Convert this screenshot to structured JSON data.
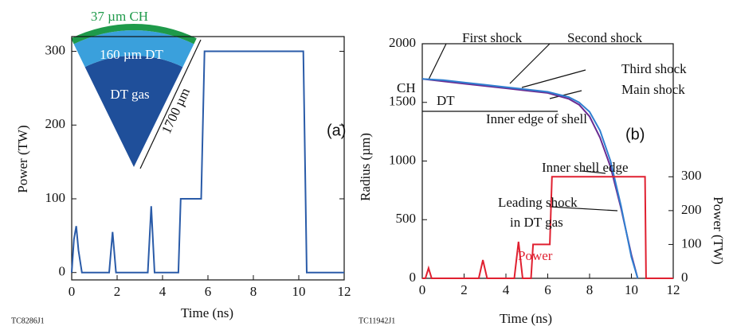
{
  "chart_data": [
    {
      "type": "line",
      "xlabel": "Time (ns)",
      "ylabel": "Power (TW)",
      "x": [
        0,
        0.1,
        0.2,
        0.3,
        0.45,
        1.65,
        1.8,
        1.95,
        3.35,
        3.5,
        3.65,
        4.7,
        4.8,
        5.7,
        5.85,
        10.2,
        10.35,
        12
      ],
      "series": [
        {
          "color": "#2a5ba8",
          "values": [
            0,
            45,
            63,
            30,
            0,
            0,
            55,
            0,
            0,
            90,
            0,
            0,
            100,
            100,
            300,
            300,
            0,
            0
          ]
        }
      ],
      "xlim": [
        0,
        12
      ],
      "xticks": [
        0,
        2,
        4,
        6,
        8,
        10,
        12
      ],
      "ylim": [
        -10,
        320
      ],
      "yticks": [
        0,
        100,
        200,
        300
      ],
      "annotations": [
        "37 µm CH",
        "160 µm DT",
        "DT gas",
        "1700 µm",
        "(a)"
      ],
      "footnote": "TC8286J1"
    },
    {
      "type": "line",
      "xlabel": "Time (ns)",
      "ylabel": "Radius (µm)",
      "y2label": "Power (TW)",
      "x": [
        0,
        1,
        2,
        3,
        4,
        5,
        6,
        7,
        7.5,
        8,
        8.5,
        9,
        9.5,
        10,
        10.3
      ],
      "series": [
        {
          "color": "#6a2c91",
          "values": [
            1700,
            1680,
            1660,
            1640,
            1620,
            1600,
            1580,
            1530,
            1480,
            1380,
            1200,
            950,
            600,
            200,
            0
          ]
        },
        {
          "color": "#2f7fd0",
          "values": [
            1700,
            1690,
            1670,
            1650,
            1630,
            1610,
            1590,
            1545,
            1500,
            1420,
            1260,
            1000,
            620,
            180,
            0
          ]
        },
        {
          "name": "Power",
          "color": "#e02030",
          "axis": "y2",
          "x": [
            0,
            0.15,
            0.3,
            0.45,
            0.6,
            2.7,
            2.9,
            3.1,
            4.4,
            4.6,
            4.8,
            5.2,
            5.3,
            6.1,
            6.2,
            10.65,
            10.7,
            12
          ],
          "values": [
            0,
            0,
            30,
            0,
            0,
            0,
            54,
            0,
            0,
            108,
            0,
            0,
            100,
            100,
            300,
            300,
            0,
            0
          ]
        }
      ],
      "xlim": [
        0,
        12
      ],
      "xticks": [
        0,
        2,
        4,
        6,
        8,
        10,
        12
      ],
      "ylim": [
        0,
        2000
      ],
      "yticks": [
        0,
        500,
        1000,
        1500,
        2000
      ],
      "y2lim": [
        0,
        693
      ],
      "y2ticks": [
        0,
        100,
        200,
        300
      ],
      "annotations": [
        "First shock",
        "Second shock",
        "Third shock",
        "Main shock",
        "CH",
        "DT",
        "Inner edge of shell",
        "(b)",
        "Inner shell edge",
        "Leading shock",
        "in DT gas"
      ],
      "footnote": "TC11942J1"
    }
  ]
}
